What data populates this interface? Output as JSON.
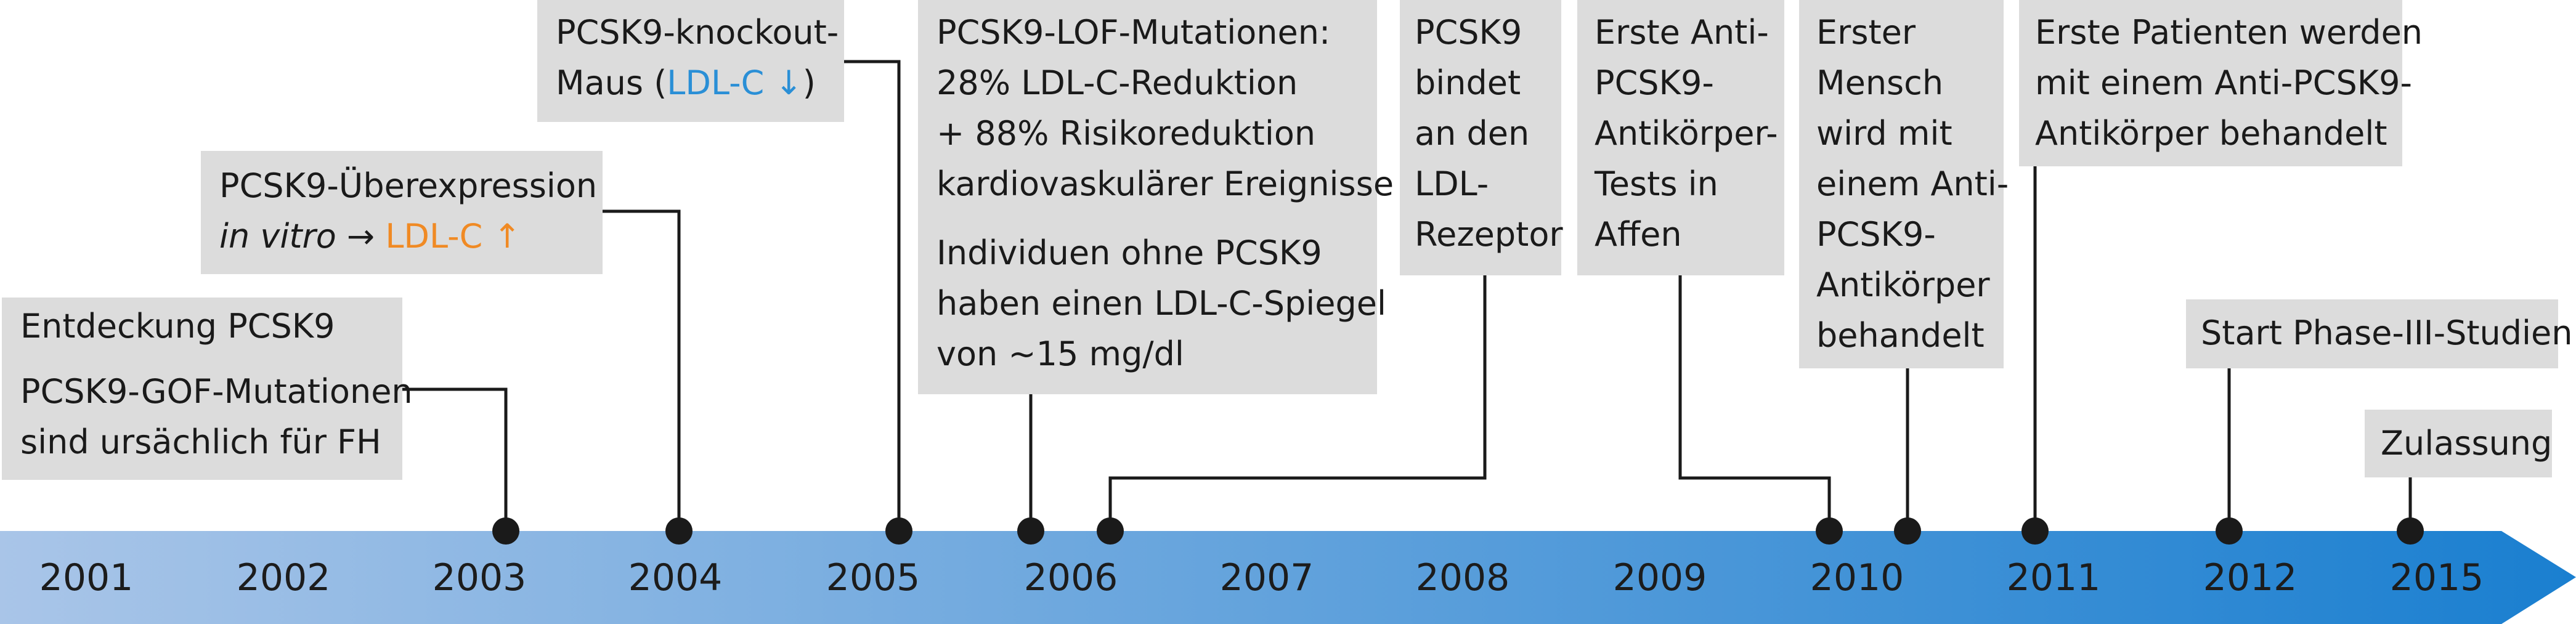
{
  "timeline": {
    "years": [
      "2001",
      "2002",
      "2003",
      "2004",
      "2005",
      "2006",
      "2007",
      "2008",
      "2009",
      "2010",
      "2011",
      "2012",
      "2015"
    ],
    "band_colors": {
      "start": "#a9c5e8",
      "end": "#1a7fd0"
    },
    "dot_color": "#1a1a1a",
    "box_color": "#dcdcdc"
  },
  "events": [
    {
      "id": "e1",
      "lines": [
        "Entdeckung PCSK9"
      ],
      "lines2": [
        "PCSK9-GOF-Mutationen",
        "sind ursächlich für FH"
      ]
    },
    {
      "id": "e2",
      "line1": "PCSK9-Überexpression",
      "line2_ital": "in vitro",
      "line2_arrow": " → ",
      "line2_hl": "LDL-C ↑"
    },
    {
      "id": "e3",
      "line1": "PCSK9-knockout-",
      "line2_pre": "Maus (",
      "line2_hl": "LDL-C ↓",
      "line2_post": ")"
    },
    {
      "id": "e4",
      "lines": [
        "PCSK9-LOF-Mutationen:",
        "28% LDL-C-Reduktion",
        "+ 88% Risikoreduktion",
        "kardiovaskulärer Ereignisse"
      ],
      "lines2": [
        "Individuen ohne PCSK9",
        "haben einen LDL-C-Spiegel",
        "von ~15 mg/dl"
      ]
    },
    {
      "id": "e5",
      "lines": [
        "PCSK9",
        "bindet",
        "an den",
        "LDL-",
        "Rezeptor"
      ]
    },
    {
      "id": "e6",
      "lines": [
        "Erste Anti-",
        "PCSK9-",
        "Antikörper-",
        "Tests in",
        "Affen"
      ]
    },
    {
      "id": "e7",
      "lines": [
        "Erster",
        "Mensch",
        "wird mit",
        "einem Anti-",
        "PCSK9-",
        "Antikörper",
        "behandelt"
      ]
    },
    {
      "id": "e8",
      "lines": [
        "Erste Patienten werden",
        "mit einem Anti-PCSK9-",
        "Antikörper behandelt"
      ]
    },
    {
      "id": "e9",
      "lines": [
        "Start Phase-III-Studien"
      ]
    },
    {
      "id": "e10",
      "lines": [
        "Zulassung"
      ]
    }
  ]
}
